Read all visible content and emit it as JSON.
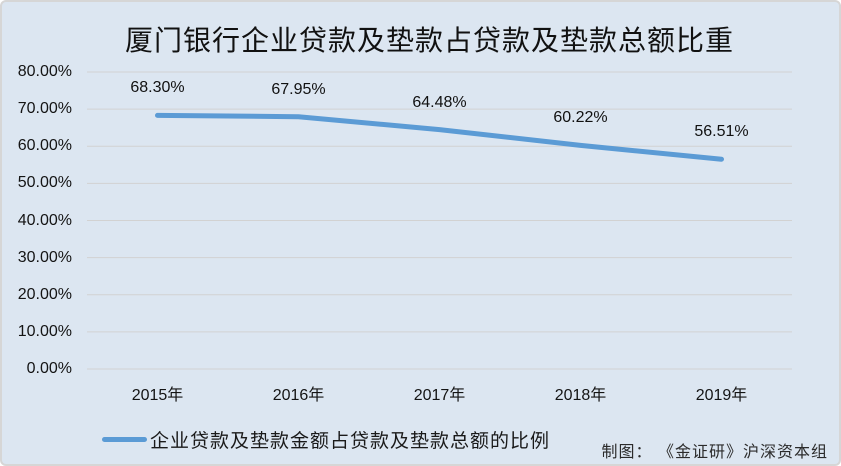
{
  "chart": {
    "title": "厦门银行企业贷款及垫款占贷款及垫款总额比重",
    "legend_label": "企业贷款及垫款金额占贷款及垫款总额的比例",
    "attribution": "制图： 《金证研》沪深资本组"
  },
  "chart_data": {
    "type": "line",
    "title": "厦门银行企业贷款及垫款占贷款及垫款总额比重",
    "categories": [
      "2015年",
      "2016年",
      "2017年",
      "2018年",
      "2019年"
    ],
    "series": [
      {
        "name": "企业贷款及垫款金额占贷款及垫款总额的比例",
        "values": [
          68.3,
          67.95,
          64.48,
          60.22,
          56.51
        ]
      }
    ],
    "data_labels": [
      "68.30%",
      "67.95%",
      "64.48%",
      "60.22%",
      "56.51%"
    ],
    "ylim": [
      0,
      80
    ],
    "y_tick_step": 10,
    "y_tick_labels": [
      "0.00%",
      "10.00%",
      "20.00%",
      "30.00%",
      "40.00%",
      "50.00%",
      "60.00%",
      "70.00%",
      "80.00%"
    ],
    "grid": true,
    "legend_position": "bottom",
    "annotations": [
      "制图： 《金证研》沪深资本组"
    ],
    "colors": {
      "line": "#5b9bd5",
      "background": "#dce6f1",
      "gridline": "#d2d2d2",
      "text": "#111111",
      "border": "#d6d6d6"
    }
  }
}
